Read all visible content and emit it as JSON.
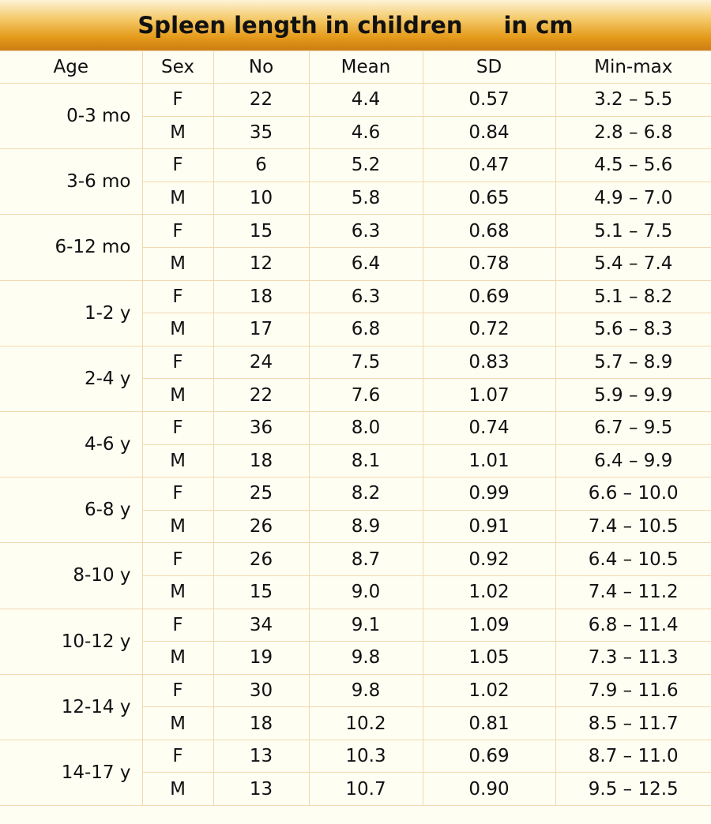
{
  "title": {
    "main": "Spleen length in children",
    "unit": "in cm"
  },
  "columns": [
    "Age",
    "Sex",
    "No",
    "Mean",
    "SD",
    "Min-max"
  ],
  "groups": [
    {
      "age": "0-3 mo",
      "rows": [
        {
          "sex": "F",
          "no": "22",
          "mean": "4.4",
          "sd": "0.57",
          "range": "3.2 – 5.5"
        },
        {
          "sex": "M",
          "no": "35",
          "mean": "4.6",
          "sd": "0.84",
          "range": "2.8 – 6.8"
        }
      ]
    },
    {
      "age": "3-6 mo",
      "rows": [
        {
          "sex": "F",
          "no": "6",
          "mean": "5.2",
          "sd": "0.47",
          "range": "4.5 – 5.6"
        },
        {
          "sex": "M",
          "no": "10",
          "mean": "5.8",
          "sd": "0.65",
          "range": "4.9 – 7.0"
        }
      ]
    },
    {
      "age": "6-12 mo",
      "rows": [
        {
          "sex": "F",
          "no": "15",
          "mean": "6.3",
          "sd": "0.68",
          "range": "5.1 – 7.5"
        },
        {
          "sex": "M",
          "no": "12",
          "mean": "6.4",
          "sd": "0.78",
          "range": "5.4 – 7.4"
        }
      ]
    },
    {
      "age": "1-2 y",
      "rows": [
        {
          "sex": "F",
          "no": "18",
          "mean": "6.3",
          "sd": "0.69",
          "range": "5.1 – 8.2"
        },
        {
          "sex": "M",
          "no": "17",
          "mean": "6.8",
          "sd": "0.72",
          "range": "5.6 – 8.3"
        }
      ]
    },
    {
      "age": "2-4 y",
      "rows": [
        {
          "sex": "F",
          "no": "24",
          "mean": "7.5",
          "sd": "0.83",
          "range": "5.7 – 8.9"
        },
        {
          "sex": "M",
          "no": "22",
          "mean": "7.6",
          "sd": "1.07",
          "range": "5.9 – 9.9"
        }
      ]
    },
    {
      "age": "4-6 y",
      "rows": [
        {
          "sex": "F",
          "no": "36",
          "mean": "8.0",
          "sd": "0.74",
          "range": "6.7 – 9.5"
        },
        {
          "sex": "M",
          "no": "18",
          "mean": "8.1",
          "sd": "1.01",
          "range": "6.4 – 9.9"
        }
      ]
    },
    {
      "age": "6-8 y",
      "rows": [
        {
          "sex": "F",
          "no": "25",
          "mean": "8.2",
          "sd": "0.99",
          "range": "6.6 – 10.0"
        },
        {
          "sex": "M",
          "no": "26",
          "mean": "8.9",
          "sd": "0.91",
          "range": "7.4 – 10.5"
        }
      ]
    },
    {
      "age": "8-10 y",
      "rows": [
        {
          "sex": "F",
          "no": "26",
          "mean": "8.7",
          "sd": "0.92",
          "range": "6.4 – 10.5"
        },
        {
          "sex": "M",
          "no": "15",
          "mean": "9.0",
          "sd": "1.02",
          "range": "7.4 – 11.2"
        }
      ]
    },
    {
      "age": "10-12 y",
      "rows": [
        {
          "sex": "F",
          "no": "34",
          "mean": "9.1",
          "sd": "1.09",
          "range": "6.8 – 11.4"
        },
        {
          "sex": "M",
          "no": "19",
          "mean": "9.8",
          "sd": "1.05",
          "range": "7.3 – 11.3"
        }
      ]
    },
    {
      "age": "12-14 y",
      "rows": [
        {
          "sex": "F",
          "no": "30",
          "mean": "9.8",
          "sd": "1.02",
          "range": "7.9 – 11.6"
        },
        {
          "sex": "M",
          "no": "18",
          "mean": "10.2",
          "sd": "0.81",
          "range": "8.5 – 11.7"
        }
      ]
    },
    {
      "age": "14-17 y",
      "rows": [
        {
          "sex": "F",
          "no": "13",
          "mean": "10.3",
          "sd": "0.69",
          "range": "8.7 – 11.0"
        },
        {
          "sex": "M",
          "no": "13",
          "mean": "10.7",
          "sd": "0.90",
          "range": "9.5 – 12.5"
        }
      ]
    }
  ]
}
